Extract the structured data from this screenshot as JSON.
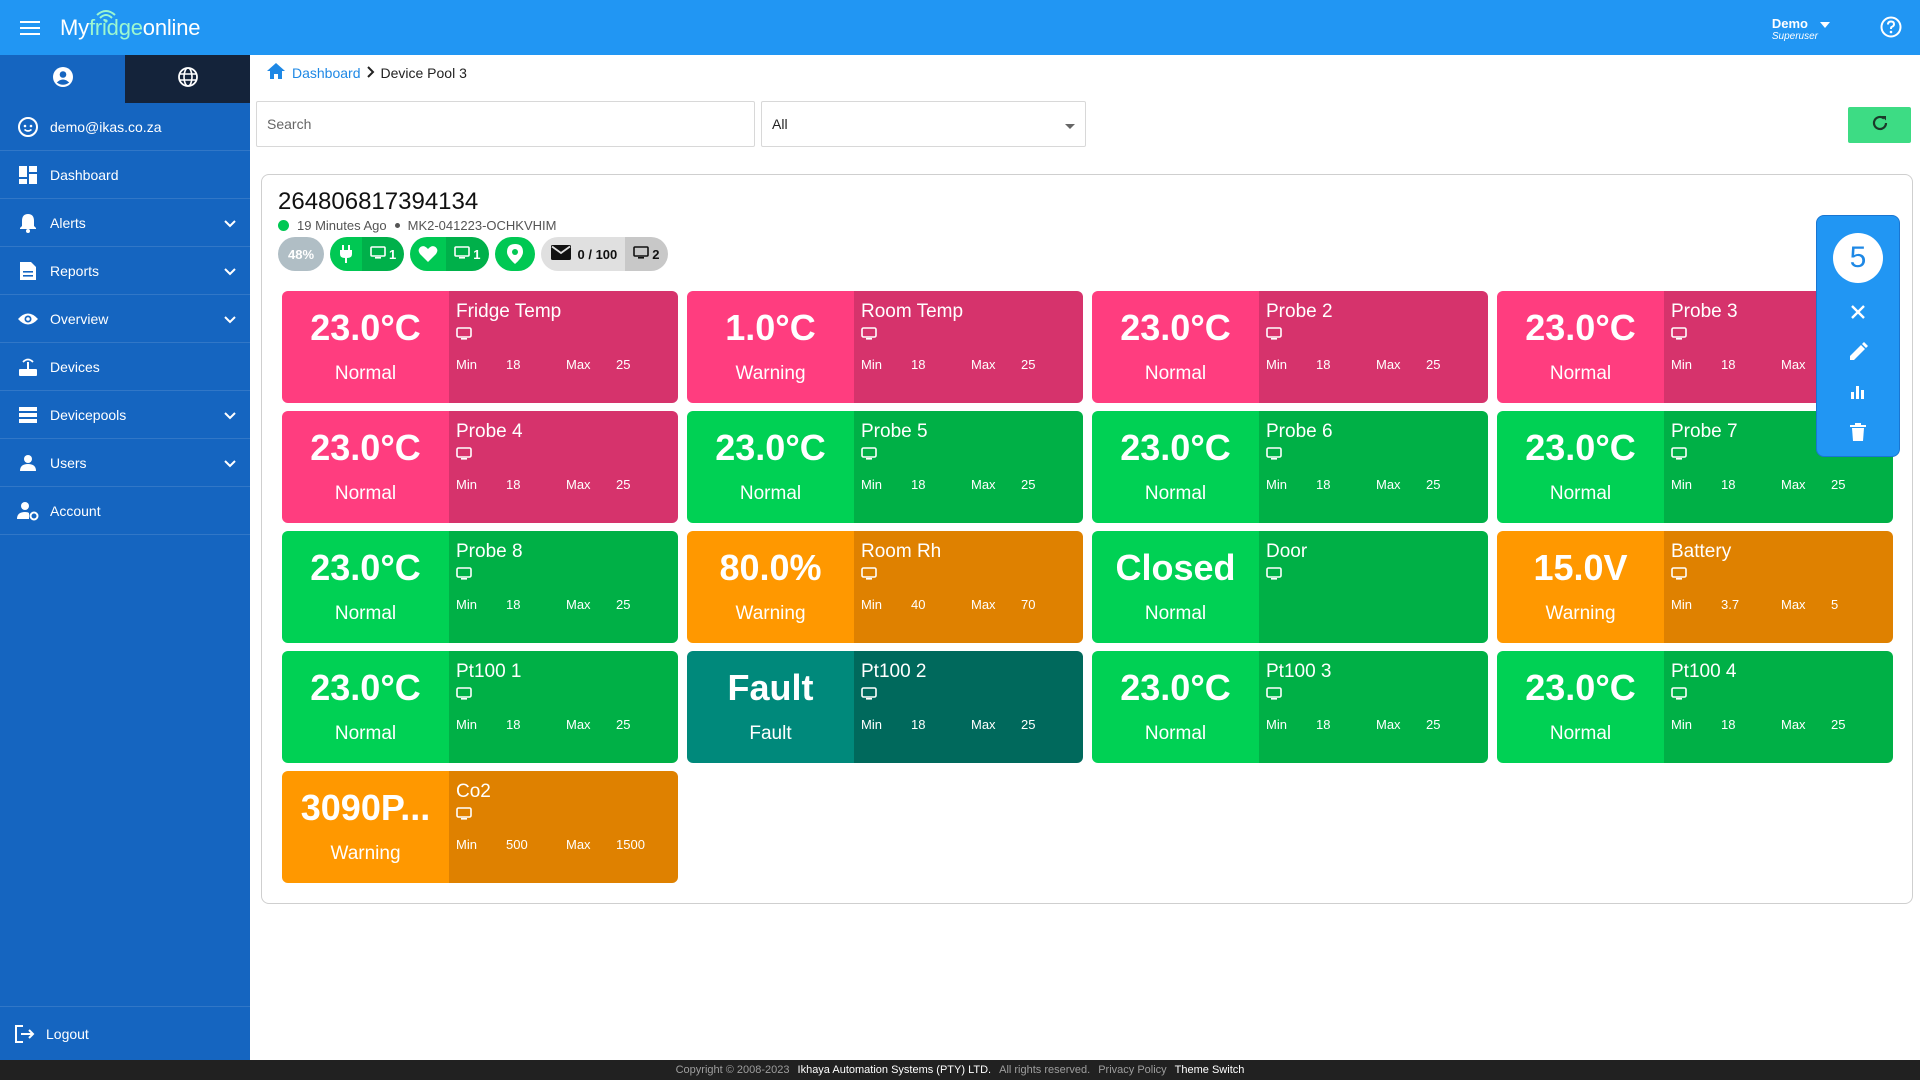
{
  "header": {
    "logo_pre": "My",
    "logo_mid": "fridge",
    "logo_post": "online",
    "user_name": "Demo",
    "user_role": "Superuser"
  },
  "sidebar": {
    "email": "demo@ikas.co.za",
    "items": [
      {
        "label": "Dashboard",
        "icon": "dashboard-icon",
        "expandable": false
      },
      {
        "label": "Alerts",
        "icon": "bell-icon",
        "expandable": true
      },
      {
        "label": "Reports",
        "icon": "report-icon",
        "expandable": true
      },
      {
        "label": "Overview",
        "icon": "eye-icon",
        "expandable": true
      },
      {
        "label": "Devices",
        "icon": "router-icon",
        "expandable": false
      },
      {
        "label": "Devicepools",
        "icon": "storage-icon",
        "expandable": true
      },
      {
        "label": "Users",
        "icon": "person-icon",
        "expandable": true
      },
      {
        "label": "Account",
        "icon": "account-gear-icon",
        "expandable": false
      }
    ],
    "logout": "Logout"
  },
  "breadcrumb": {
    "home": "Dashboard",
    "current": "Device Pool 3"
  },
  "filters": {
    "search_placeholder": "Search",
    "select_value": "All"
  },
  "device": {
    "id": "264806817394134",
    "last_seen": "19 Minutes Ago",
    "serial": "MK2-041223-OCHKVHIM",
    "battery_pct": "48%",
    "power_count": "1",
    "health_count": "1",
    "messages": "0 / 100",
    "screen_count": "2"
  },
  "tiles": [
    {
      "value": "23.0°C",
      "status": "Normal",
      "name": "Fridge Temp",
      "min_label": "Min",
      "min": "18",
      "max_label": "Max",
      "max": "25",
      "color": "pink"
    },
    {
      "value": "1.0°C",
      "status": "Warning",
      "name": "Room Temp",
      "min_label": "Min",
      "min": "18",
      "max_label": "Max",
      "max": "25",
      "color": "pink"
    },
    {
      "value": "23.0°C",
      "status": "Normal",
      "name": "Probe 2",
      "min_label": "Min",
      "min": "18",
      "max_label": "Max",
      "max": "25",
      "color": "pink"
    },
    {
      "value": "23.0°C",
      "status": "Normal",
      "name": "Probe 3",
      "min_label": "Min",
      "min": "18",
      "max_label": "Max",
      "max": "",
      "color": "pink"
    },
    {
      "value": "23.0°C",
      "status": "Normal",
      "name": "Probe 4",
      "min_label": "Min",
      "min": "18",
      "max_label": "Max",
      "max": "25",
      "color": "pink"
    },
    {
      "value": "23.0°C",
      "status": "Normal",
      "name": "Probe 5",
      "min_label": "Min",
      "min": "18",
      "max_label": "Max",
      "max": "25",
      "color": "green"
    },
    {
      "value": "23.0°C",
      "status": "Normal",
      "name": "Probe 6",
      "min_label": "Min",
      "min": "18",
      "max_label": "Max",
      "max": "25",
      "color": "green"
    },
    {
      "value": "23.0°C",
      "status": "Normal",
      "name": "Probe 7",
      "min_label": "Min",
      "min": "18",
      "max_label": "Max",
      "max": "25",
      "color": "green"
    },
    {
      "value": "23.0°C",
      "status": "Normal",
      "name": "Probe 8",
      "min_label": "Min",
      "min": "18",
      "max_label": "Max",
      "max": "25",
      "color": "green"
    },
    {
      "value": "80.0%",
      "status": "Warning",
      "name": "Room Rh",
      "min_label": "Min",
      "min": "40",
      "max_label": "Max",
      "max": "70",
      "color": "orange"
    },
    {
      "value": "Closed",
      "status": "Normal",
      "name": "Door",
      "min_label": "",
      "min": "",
      "max_label": "",
      "max": "",
      "color": "green"
    },
    {
      "value": "15.0V",
      "status": "Warning",
      "name": "Battery",
      "min_label": "Min",
      "min": "3.7",
      "max_label": "Max",
      "max": "5",
      "color": "orange"
    },
    {
      "value": "23.0°C",
      "status": "Normal",
      "name": "Pt100 1",
      "min_label": "Min",
      "min": "18",
      "max_label": "Max",
      "max": "25",
      "color": "green"
    },
    {
      "value": "Fault",
      "status": "Fault",
      "name": "Pt100 2",
      "min_label": "Min",
      "min": "18",
      "max_label": "Max",
      "max": "25",
      "color": "teal"
    },
    {
      "value": "23.0°C",
      "status": "Normal",
      "name": "Pt100 3",
      "min_label": "Min",
      "min": "18",
      "max_label": "Max",
      "max": "25",
      "color": "green"
    },
    {
      "value": "23.0°C",
      "status": "Normal",
      "name": "Pt100 4",
      "min_label": "Min",
      "min": "18",
      "max_label": "Max",
      "max": "25",
      "color": "green"
    },
    {
      "value": "3090P...",
      "status": "Warning",
      "name": "Co2",
      "min_label": "Min",
      "min": "500",
      "max_label": "Max",
      "max": "1500",
      "color": "orange"
    }
  ],
  "float_panel": {
    "count": "5"
  },
  "footer": {
    "copyright": "Copyright © 2008-2023",
    "company": "Ikhaya Automation Systems (PTY) LTD.",
    "rights": "All rights reserved.",
    "privacy": "Privacy Policy",
    "theme": "Theme Switch"
  },
  "colors": {
    "primary": "#2196f3",
    "sidebar": "#1565c0",
    "pink": "#ff3d7f",
    "green": "#00d154",
    "orange": "#ff9800",
    "teal": "#00897b"
  }
}
